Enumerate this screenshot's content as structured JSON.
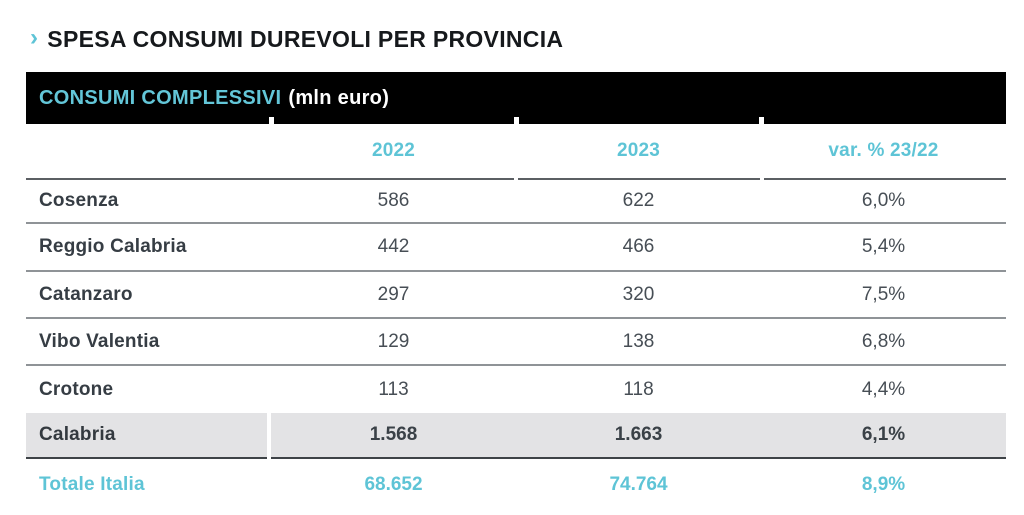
{
  "page": {
    "title_marker": "›",
    "title": "SPESA CONSUMI DUREVOLI PER PROVINCIA"
  },
  "banner": {
    "title": "CONSUMI COMPLESSIVI",
    "unit": "(mln euro)"
  },
  "table": {
    "columns": [
      "",
      "2022",
      "2023",
      "var. % 23/22"
    ],
    "rows": [
      {
        "label": "Cosenza",
        "v2022": "586",
        "v2023": "622",
        "var": "6,0%"
      },
      {
        "label": "Reggio Calabria",
        "v2022": "442",
        "v2023": "466",
        "var": "5,4%"
      },
      {
        "label": "Catanzaro",
        "v2022": "297",
        "v2023": "320",
        "var": "7,5%"
      },
      {
        "label": "Vibo Valentia",
        "v2022": "129",
        "v2023": "138",
        "var": "6,8%"
      },
      {
        "label": "Crotone",
        "v2022": "113",
        "v2023": "118",
        "var": "4,4%"
      }
    ],
    "summary_row": {
      "label": "Calabria",
      "v2022": "1.568",
      "v2023": "1.663",
      "var": "6,1%"
    },
    "total_row": {
      "label": "Totale Italia",
      "v2022": "68.652",
      "v2023": "74.764",
      "var": "8,9%"
    }
  },
  "colors": {
    "accent_teal": "#5ec4d6",
    "banner_bg": "#000000",
    "summary_row_bg": "#e3e3e5",
    "text_dark": "#363d44"
  }
}
